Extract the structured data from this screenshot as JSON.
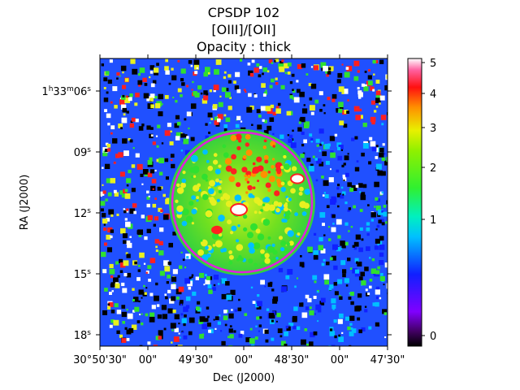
{
  "figure": {
    "title_lines": [
      "CPSDP 102",
      "[OIII]/[OII]",
      "Opacity : thick"
    ]
  },
  "axes": {
    "xlabel": "Dec (J2000)",
    "ylabel": "RA (J2000)",
    "x_ticks": [
      "30°50'30\"",
      "00\"",
      "49'30\"",
      "00\"",
      "48'30\"",
      "00\"",
      "47'30\""
    ],
    "y_ticks": [
      {
        "main": "1",
        "sup1": "h",
        "mid": "33",
        "sup2": "m",
        "tail": "06",
        "sup3": "s"
      },
      {
        "main": "09",
        "sup1": "s"
      },
      {
        "main": "12",
        "sup1": "s"
      },
      {
        "main": "15",
        "sup1": "s"
      },
      {
        "main": "18",
        "sup1": "s"
      }
    ]
  },
  "colorbar": {
    "ticks": [
      "5",
      "4",
      "3",
      "2",
      "1",
      "0"
    ],
    "values": [
      5,
      4,
      3,
      2,
      1,
      0
    ],
    "colormap": "gist_rainbow-like (black → purple → blue → cyan → green → yellow → orange → red → white)"
  },
  "overlay": {
    "circle_color": "#e020e0",
    "description_color_note": "magenta aperture circle"
  },
  "colors": {
    "background_blue": "#2050ff",
    "green": "#30e030",
    "yellow": "#e8f020",
    "red": "#ff2020",
    "black": "#000000",
    "white": "#ffffff"
  }
}
